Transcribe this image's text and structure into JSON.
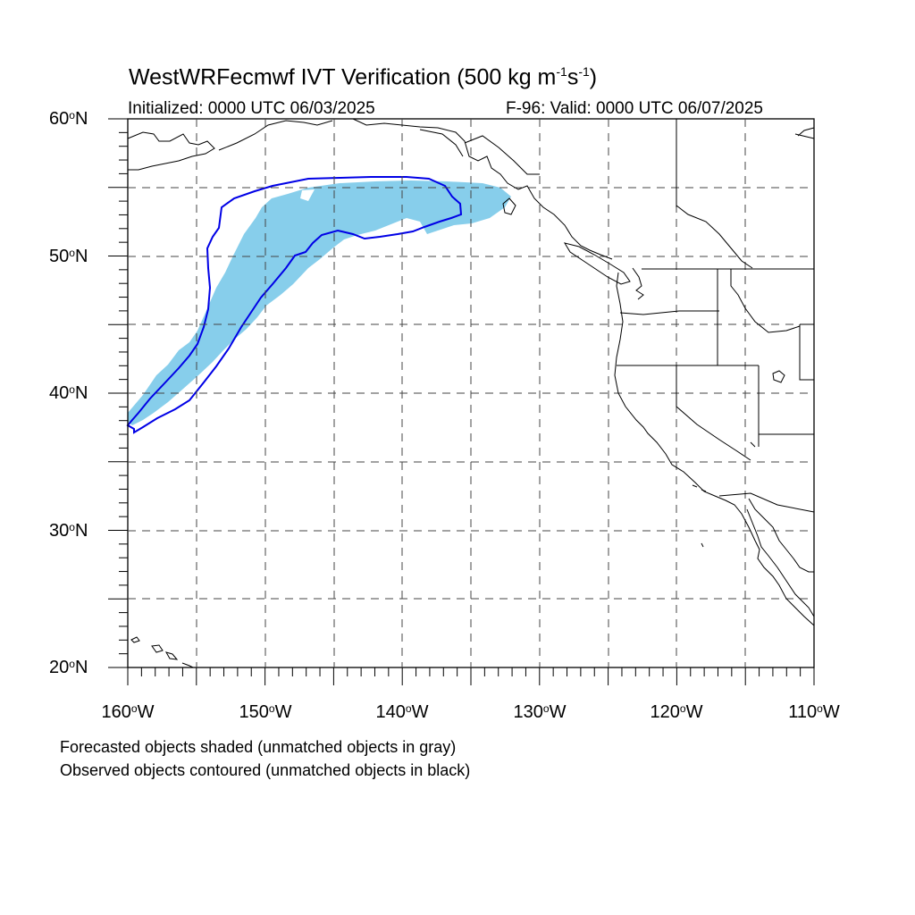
{
  "title": {
    "prefix": "WestWRFecmwf IVT Verification (500 kg m",
    "exp1": "-1",
    "middle": "s",
    "exp2": "-1",
    "suffix": ")"
  },
  "subtitle": {
    "initialized": "Initialized: 0000 UTC 06/03/2025",
    "valid": "F-96: Valid: 0000 UTC 06/07/2025"
  },
  "lat_labels": [
    {
      "value": "60",
      "unit": "N"
    },
    {
      "value": "50",
      "unit": "N"
    },
    {
      "value": "40",
      "unit": "N"
    },
    {
      "value": "30",
      "unit": "N"
    },
    {
      "value": "20",
      "unit": "N"
    }
  ],
  "lon_labels": [
    {
      "value": "160",
      "unit": "W"
    },
    {
      "value": "150",
      "unit": "W"
    },
    {
      "value": "140",
      "unit": "W"
    },
    {
      "value": "130",
      "unit": "W"
    },
    {
      "value": "120",
      "unit": "W"
    },
    {
      "value": "110",
      "unit": "W"
    }
  ],
  "notes": [
    "Forecasted objects shaded (unmatched objects in gray)",
    "Observed objects contoured (unmatched objects in black)"
  ],
  "map": {
    "lon_range": [
      -160,
      -110
    ],
    "lat_range": [
      20,
      60
    ],
    "gridlines": "dashed every 5 degrees",
    "forecast_object_color": "#87ceeb",
    "observed_contour_color": "#0000e6",
    "coastline_color": "#000000"
  }
}
